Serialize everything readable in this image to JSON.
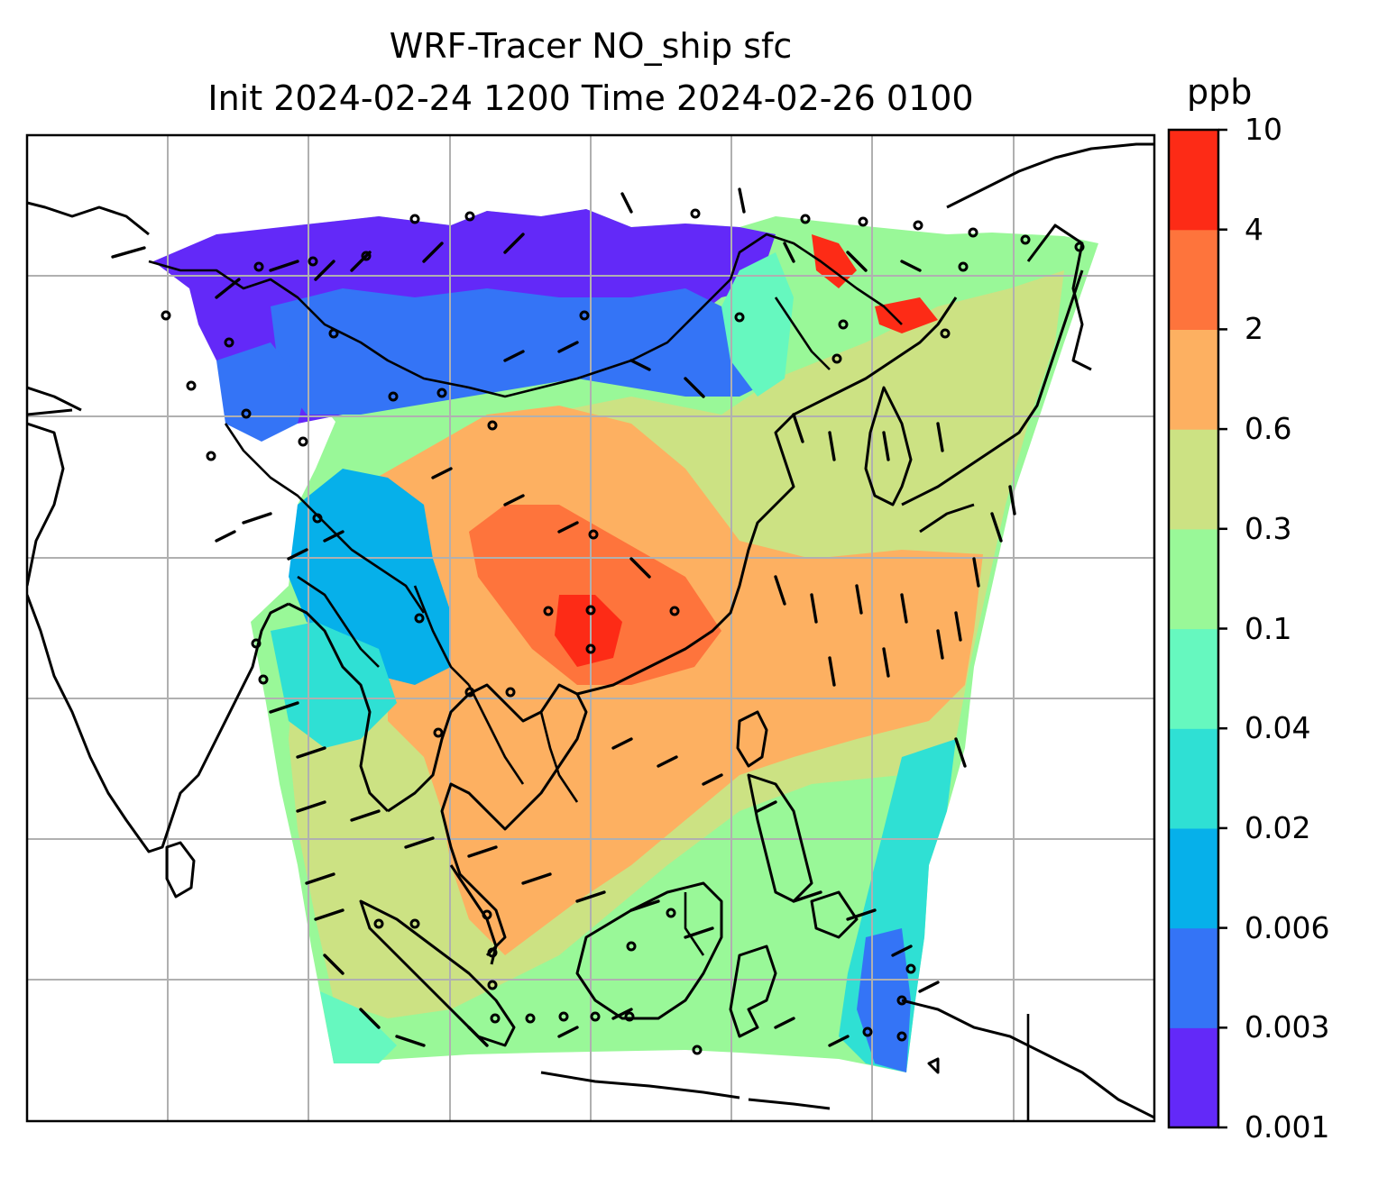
{
  "title": {
    "line1": "WRF-Tracer NO_ship sfc",
    "line2": "Init 2024-02-24 1200 Time 2024-02-26 0100"
  },
  "colorbar": {
    "unit": "ppb",
    "ticks": [
      "0.001",
      "0.003",
      "0.006",
      "0.02",
      "0.04",
      "0.1",
      "0.3",
      "0.6",
      "2",
      "4",
      "10"
    ],
    "bin_colors": [
      "#6329f8",
      "#3474f6",
      "#06b0ea",
      "#2fe0d4",
      "#66f8bf",
      "#99f898",
      "#cce283",
      "#fdb061",
      "#fe743c",
      "#fd2b16"
    ]
  },
  "map": {
    "gridlines": true,
    "features": [
      "coastlines",
      "country-borders",
      "wind-barbs",
      "calm-wind-circles"
    ]
  }
}
